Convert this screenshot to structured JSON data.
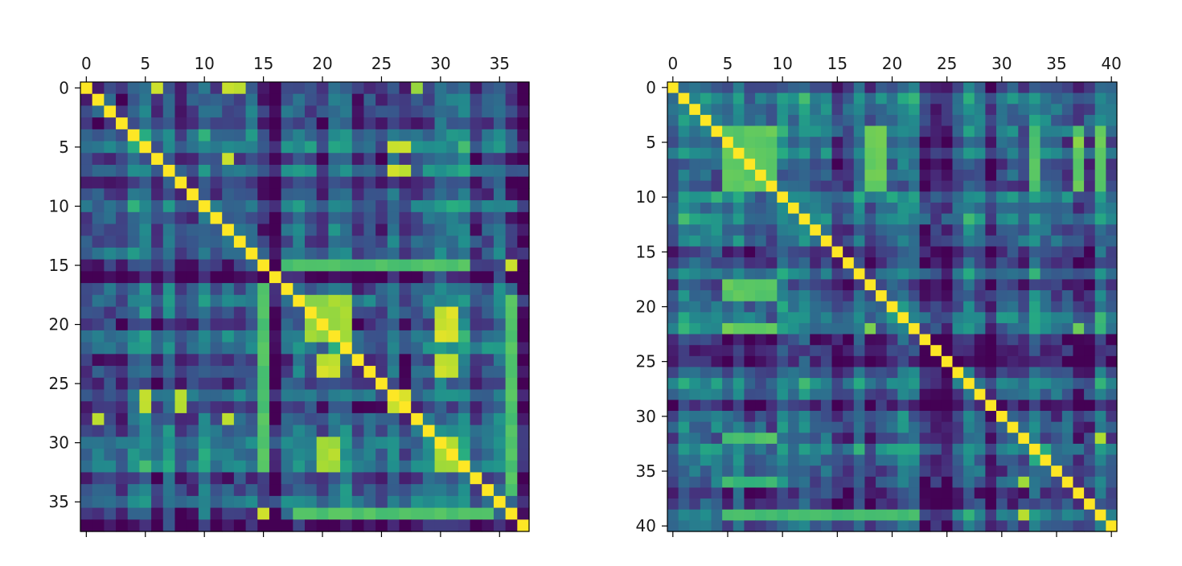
{
  "chart_data": [
    {
      "type": "heatmap",
      "title": "",
      "xlabel": "",
      "ylabel": "",
      "size": 38,
      "xlim": [
        -0.5,
        37.5
      ],
      "ylim": [
        37.5,
        -0.5
      ],
      "x_ticks": [
        0,
        5,
        10,
        15,
        20,
        25,
        30,
        35
      ],
      "y_ticks": [
        0,
        5,
        10,
        15,
        20,
        25,
        30,
        35
      ],
      "x_tick_labels": [
        "0",
        "5",
        "10",
        "15",
        "20",
        "25",
        "30",
        "35"
      ],
      "y_tick_labels": [
        "0",
        "5",
        "10",
        "15",
        "20",
        "25",
        "30",
        "35"
      ],
      "x_axis_position": "top",
      "colormap": "viridis",
      "value_range": [
        0,
        1
      ],
      "diagonal_value": 1.0,
      "grid": false,
      "legend": "none",
      "noise_seed": 11,
      "base_value": 0.35,
      "row_offsets": {
        "15": -0.2,
        "16": -0.28,
        "29": -0.1,
        "37": -0.2,
        "8": -0.05
      },
      "high_value_cells": [
        {
          "rows": [
            19,
            21
          ],
          "cols": [
            20,
            21
          ],
          "value": 0.98
        },
        {
          "rows": [
            18,
            21
          ],
          "cols": [
            19,
            22
          ],
          "value": 0.88
        },
        {
          "rows": [
            23,
            24
          ],
          "cols": [
            20,
            21
          ],
          "value": 0.95
        },
        {
          "rows": [
            19,
            21
          ],
          "cols": [
            30,
            31
          ],
          "value": 0.96
        },
        {
          "rows": [
            23,
            24
          ],
          "cols": [
            30,
            31
          ],
          "value": 0.95
        },
        {
          "rows": [
            30,
            32
          ],
          "cols": [
            20,
            21
          ],
          "value": 0.9
        },
        {
          "rows": [
            30,
            32
          ],
          "cols": [
            30,
            31
          ],
          "value": 0.9
        },
        {
          "rows": [
            26,
            27
          ],
          "cols": [
            26,
            27
          ],
          "value": 0.97
        },
        {
          "rows": [
            5,
            5
          ],
          "cols": [
            26,
            27
          ],
          "value": 0.95
        },
        {
          "rows": [
            7,
            7
          ],
          "cols": [
            26,
            27
          ],
          "value": 0.95
        },
        {
          "rows": [
            26,
            27
          ],
          "cols": [
            5,
            5
          ],
          "value": 0.95
        },
        {
          "rows": [
            26,
            27
          ],
          "cols": [
            8,
            8
          ],
          "value": 0.95
        },
        {
          "rows": [
            0,
            0
          ],
          "cols": [
            6,
            6
          ],
          "value": 0.95
        },
        {
          "rows": [
            0,
            0
          ],
          "cols": [
            12,
            13
          ],
          "value": 0.95
        },
        {
          "rows": [
            6,
            6
          ],
          "cols": [
            12,
            12
          ],
          "value": 0.95
        },
        {
          "rows": [
            0,
            0
          ],
          "cols": [
            28,
            28
          ],
          "value": 0.9
        },
        {
          "rows": [
            28,
            28
          ],
          "cols": [
            12,
            12
          ],
          "value": 0.95
        },
        {
          "rows": [
            28,
            28
          ],
          "cols": [
            1,
            1
          ],
          "value": 0.95
        },
        {
          "rows": [
            15,
            15
          ],
          "cols": [
            36,
            36
          ],
          "value": 0.97
        },
        {
          "rows": [
            36,
            36
          ],
          "cols": [
            15,
            15
          ],
          "value": 0.97
        },
        {
          "rows": [
            17,
            32
          ],
          "cols": [
            15,
            15
          ],
          "value": 0.75
        },
        {
          "rows": [
            15,
            15
          ],
          "cols": [
            17,
            32
          ],
          "value": 0.75
        },
        {
          "rows": [
            36,
            36
          ],
          "cols": [
            18,
            34
          ],
          "value": 0.75
        },
        {
          "rows": [
            18,
            34
          ],
          "cols": [
            36,
            36
          ],
          "value": 0.75
        }
      ]
    },
    {
      "type": "heatmap",
      "title": "",
      "xlabel": "",
      "ylabel": "",
      "size": 41,
      "xlim": [
        -0.5,
        40.5
      ],
      "ylim": [
        40.5,
        -0.5
      ],
      "x_ticks": [
        0,
        5,
        10,
        15,
        20,
        25,
        30,
        35,
        40
      ],
      "y_ticks": [
        0,
        5,
        10,
        15,
        20,
        25,
        30,
        35,
        40
      ],
      "x_tick_labels": [
        "0",
        "5",
        "10",
        "15",
        "20",
        "25",
        "30",
        "35",
        "40"
      ],
      "y_tick_labels": [
        "0",
        "5",
        "10",
        "15",
        "20",
        "25",
        "30",
        "35",
        "40"
      ],
      "x_axis_position": "top",
      "colormap": "viridis",
      "value_range": [
        0,
        1
      ],
      "diagonal_value": 1.0,
      "grid": false,
      "legend": "none",
      "noise_seed": 29,
      "base_value": 0.32,
      "row_offsets": {
        "23": -0.12,
        "24": -0.15,
        "25": -0.1,
        "28": -0.12,
        "29": -0.1
      },
      "high_value_cells": [
        {
          "rows": [
            4,
            9
          ],
          "cols": [
            5,
            9
          ],
          "value": 0.78
        },
        {
          "rows": [
            9,
            4
          ],
          "cols": [
            18,
            19
          ],
          "value": 0.8
        },
        {
          "rows": [
            4,
            9
          ],
          "cols": [
            18,
            19
          ],
          "value": 0.8
        },
        {
          "rows": [
            18,
            19
          ],
          "cols": [
            5,
            9
          ],
          "value": 0.78
        },
        {
          "rows": [
            4,
            9
          ],
          "cols": [
            33,
            33
          ],
          "value": 0.75
        },
        {
          "rows": [
            4,
            9
          ],
          "cols": [
            37,
            37
          ],
          "value": 0.78
        },
        {
          "rows": [
            4,
            9
          ],
          "cols": [
            39,
            39
          ],
          "value": 0.78
        },
        {
          "rows": [
            22,
            22
          ],
          "cols": [
            5,
            9
          ],
          "value": 0.8
        },
        {
          "rows": [
            32,
            32
          ],
          "cols": [
            5,
            9
          ],
          "value": 0.75
        },
        {
          "rows": [
            36,
            36
          ],
          "cols": [
            5,
            9
          ],
          "value": 0.7
        },
        {
          "rows": [
            39,
            39
          ],
          "cols": [
            5,
            22
          ],
          "value": 0.72
        },
        {
          "rows": [
            32,
            32
          ],
          "cols": [
            39,
            39
          ],
          "value": 0.9
        },
        {
          "rows": [
            36,
            36
          ],
          "cols": [
            32,
            32
          ],
          "value": 0.9
        },
        {
          "rows": [
            39,
            39
          ],
          "cols": [
            32,
            32
          ],
          "value": 0.92
        },
        {
          "rows": [
            5,
            5
          ],
          "cols": [
            37,
            37
          ],
          "value": 0.85
        },
        {
          "rows": [
            22,
            22
          ],
          "cols": [
            37,
            37
          ],
          "value": 0.8
        },
        {
          "rows": [
            22,
            22
          ],
          "cols": [
            18,
            18
          ],
          "value": 0.85
        }
      ]
    }
  ]
}
